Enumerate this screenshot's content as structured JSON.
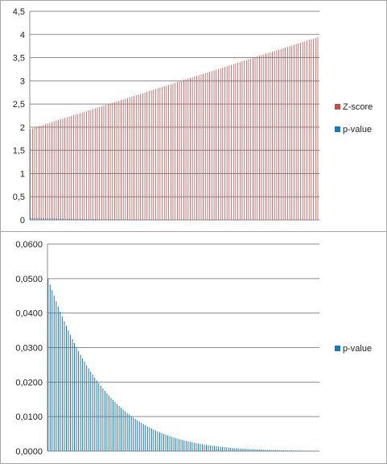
{
  "chart_data": [
    {
      "type": "bar",
      "title": "",
      "xlabel": "",
      "ylabel": "",
      "ylim": [
        0,
        4.5
      ],
      "yticks": [
        "0",
        "0,5",
        "1",
        "1,5",
        "2",
        "2,5",
        "3",
        "3,5",
        "4",
        "4,5"
      ],
      "grid": true,
      "legend_position": "right",
      "n_categories": 134,
      "series": [
        {
          "name": "Z-score",
          "color": "#c0504d",
          "start": 1.96,
          "end": 3.94
        },
        {
          "name": "p-value",
          "color": "#1f77b4",
          "start": 0.05,
          "end": 0.0001
        }
      ]
    },
    {
      "type": "bar",
      "title": "",
      "xlabel": "",
      "ylabel": "",
      "ylim": [
        0,
        0.06
      ],
      "yticks": [
        "0,0000",
        "0,0100",
        "0,0200",
        "0,0300",
        "0,0400",
        "0,0500",
        "0,0600"
      ],
      "grid": true,
      "legend_position": "right",
      "n_categories": 134,
      "series": [
        {
          "name": "p-value",
          "color": "#1f77b4",
          "start": 0.05,
          "end": 0.0001
        }
      ]
    }
  ]
}
